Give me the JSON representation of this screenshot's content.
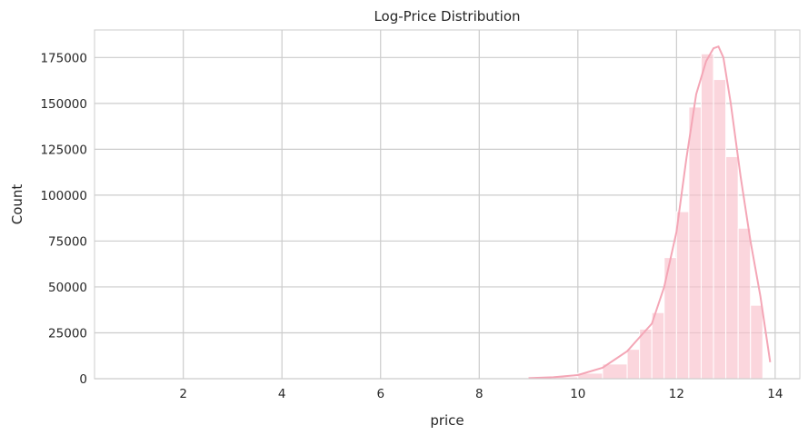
{
  "chart_data": {
    "type": "bar",
    "title": "Log-Price Distribution",
    "xlabel": "price",
    "ylabel": "Count",
    "xlim": [
      0.2,
      14.5
    ],
    "ylim": [
      0,
      190000
    ],
    "x_ticks": [
      "2",
      "4",
      "6",
      "8",
      "10",
      "12",
      "14"
    ],
    "y_ticks": [
      "0",
      "25000",
      "50000",
      "75000",
      "100000",
      "125000",
      "150000",
      "175000"
    ],
    "grid": true,
    "bar_color": "#f9c0cb",
    "kde_color": "#f4a6b6",
    "bars": [
      {
        "x0": 9.0,
        "x1": 9.5,
        "value": 500
      },
      {
        "x0": 9.5,
        "x1": 10.0,
        "value": 1000
      },
      {
        "x0": 10.0,
        "x1": 10.5,
        "value": 3000
      },
      {
        "x0": 10.5,
        "x1": 11.0,
        "value": 8000
      },
      {
        "x0": 11.0,
        "x1": 11.25,
        "value": 16000
      },
      {
        "x0": 11.25,
        "x1": 11.5,
        "value": 27000
      },
      {
        "x0": 11.5,
        "x1": 11.75,
        "value": 36000
      },
      {
        "x0": 11.75,
        "x1": 12.0,
        "value": 66000
      },
      {
        "x0": 12.0,
        "x1": 12.25,
        "value": 91000
      },
      {
        "x0": 12.25,
        "x1": 12.5,
        "value": 148000
      },
      {
        "x0": 12.5,
        "x1": 12.75,
        "value": 177000
      },
      {
        "x0": 12.75,
        "x1": 13.0,
        "value": 163000
      },
      {
        "x0": 13.0,
        "x1": 13.25,
        "value": 121000
      },
      {
        "x0": 13.25,
        "x1": 13.5,
        "value": 82000
      },
      {
        "x0": 13.5,
        "x1": 13.75,
        "value": 40000
      }
    ],
    "kde": {
      "x": [
        9.0,
        9.5,
        10.0,
        10.5,
        11.0,
        11.3,
        11.5,
        11.75,
        12.0,
        12.2,
        12.4,
        12.6,
        12.75,
        12.85,
        12.95,
        13.1,
        13.3,
        13.5,
        13.7,
        13.9
      ],
      "y": [
        300,
        800,
        2000,
        6000,
        15000,
        24000,
        30000,
        50000,
        80000,
        120000,
        155000,
        173000,
        180000,
        181000,
        175000,
        150000,
        110000,
        75000,
        45000,
        9000
      ]
    }
  }
}
